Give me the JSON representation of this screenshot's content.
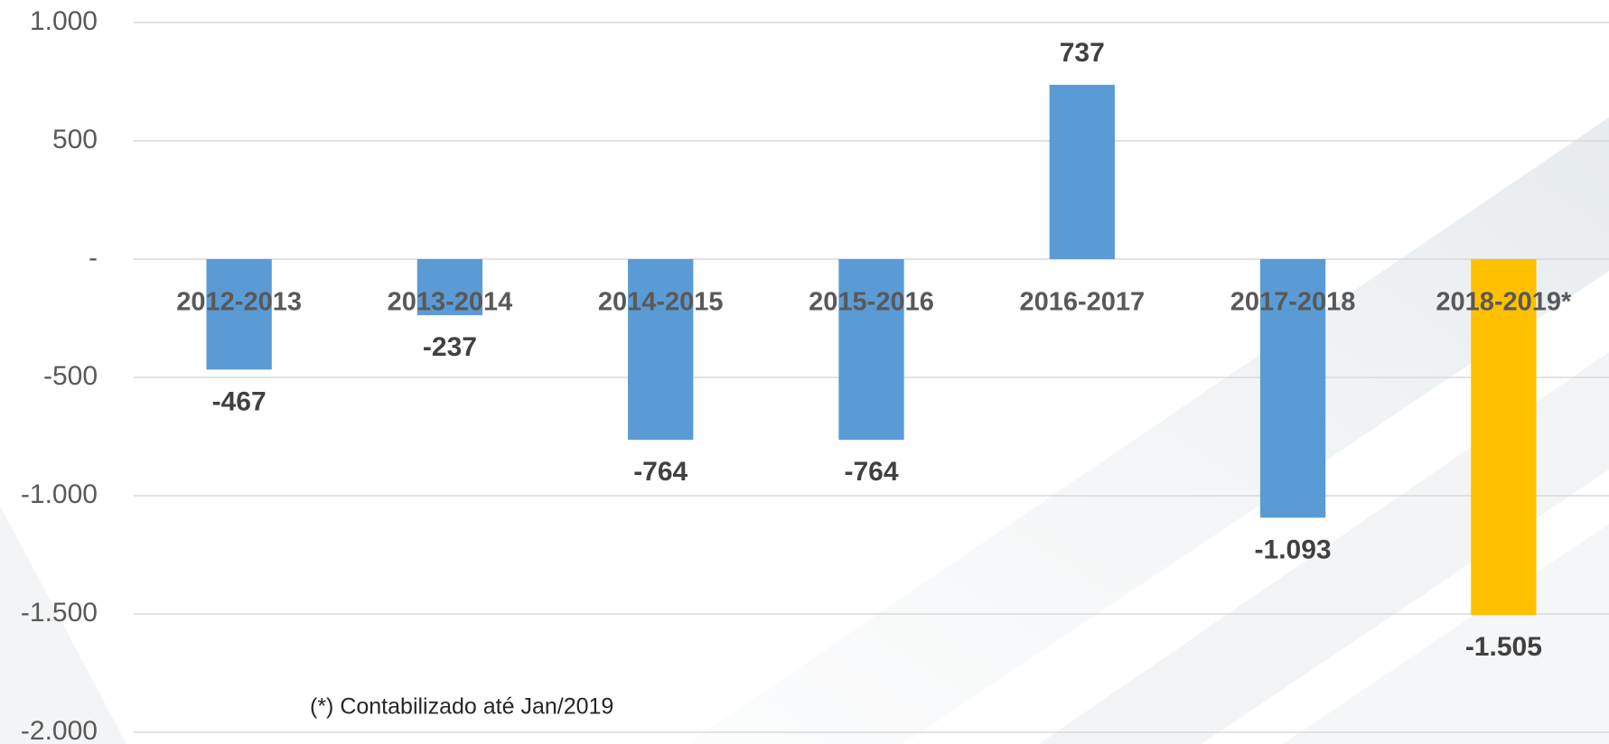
{
  "chart_data": {
    "type": "bar",
    "categories": [
      "2012-2013",
      "2013-2014",
      "2014-2015",
      "2015-2016",
      "2016-2017",
      "2017-2018",
      "2018-2019*"
    ],
    "values": [
      -467,
      -237,
      -764,
      -764,
      737,
      -1093,
      -1505
    ],
    "value_labels": [
      "-467",
      "-237",
      "-764",
      "-764",
      "737",
      "-1.093",
      "-1.505"
    ],
    "colors": [
      "#5b9bd5",
      "#5b9bd5",
      "#5b9bd5",
      "#5b9bd5",
      "#5b9bd5",
      "#5b9bd5",
      "#ffc000"
    ],
    "ylim": [
      -2000,
      1000
    ],
    "yticks": [
      {
        "value": -2000,
        "label": "-2.000"
      },
      {
        "value": -1500,
        "label": "-1.500"
      },
      {
        "value": -1000,
        "label": "-1.000"
      },
      {
        "value": -500,
        "label": "-500"
      },
      {
        "value": 0,
        "label": "-"
      },
      {
        "value": 500,
        "label": "500"
      },
      {
        "value": 1000,
        "label": "1.000"
      }
    ],
    "grid": true,
    "annotation": "(*) Contabilizado até Jan/2019"
  }
}
